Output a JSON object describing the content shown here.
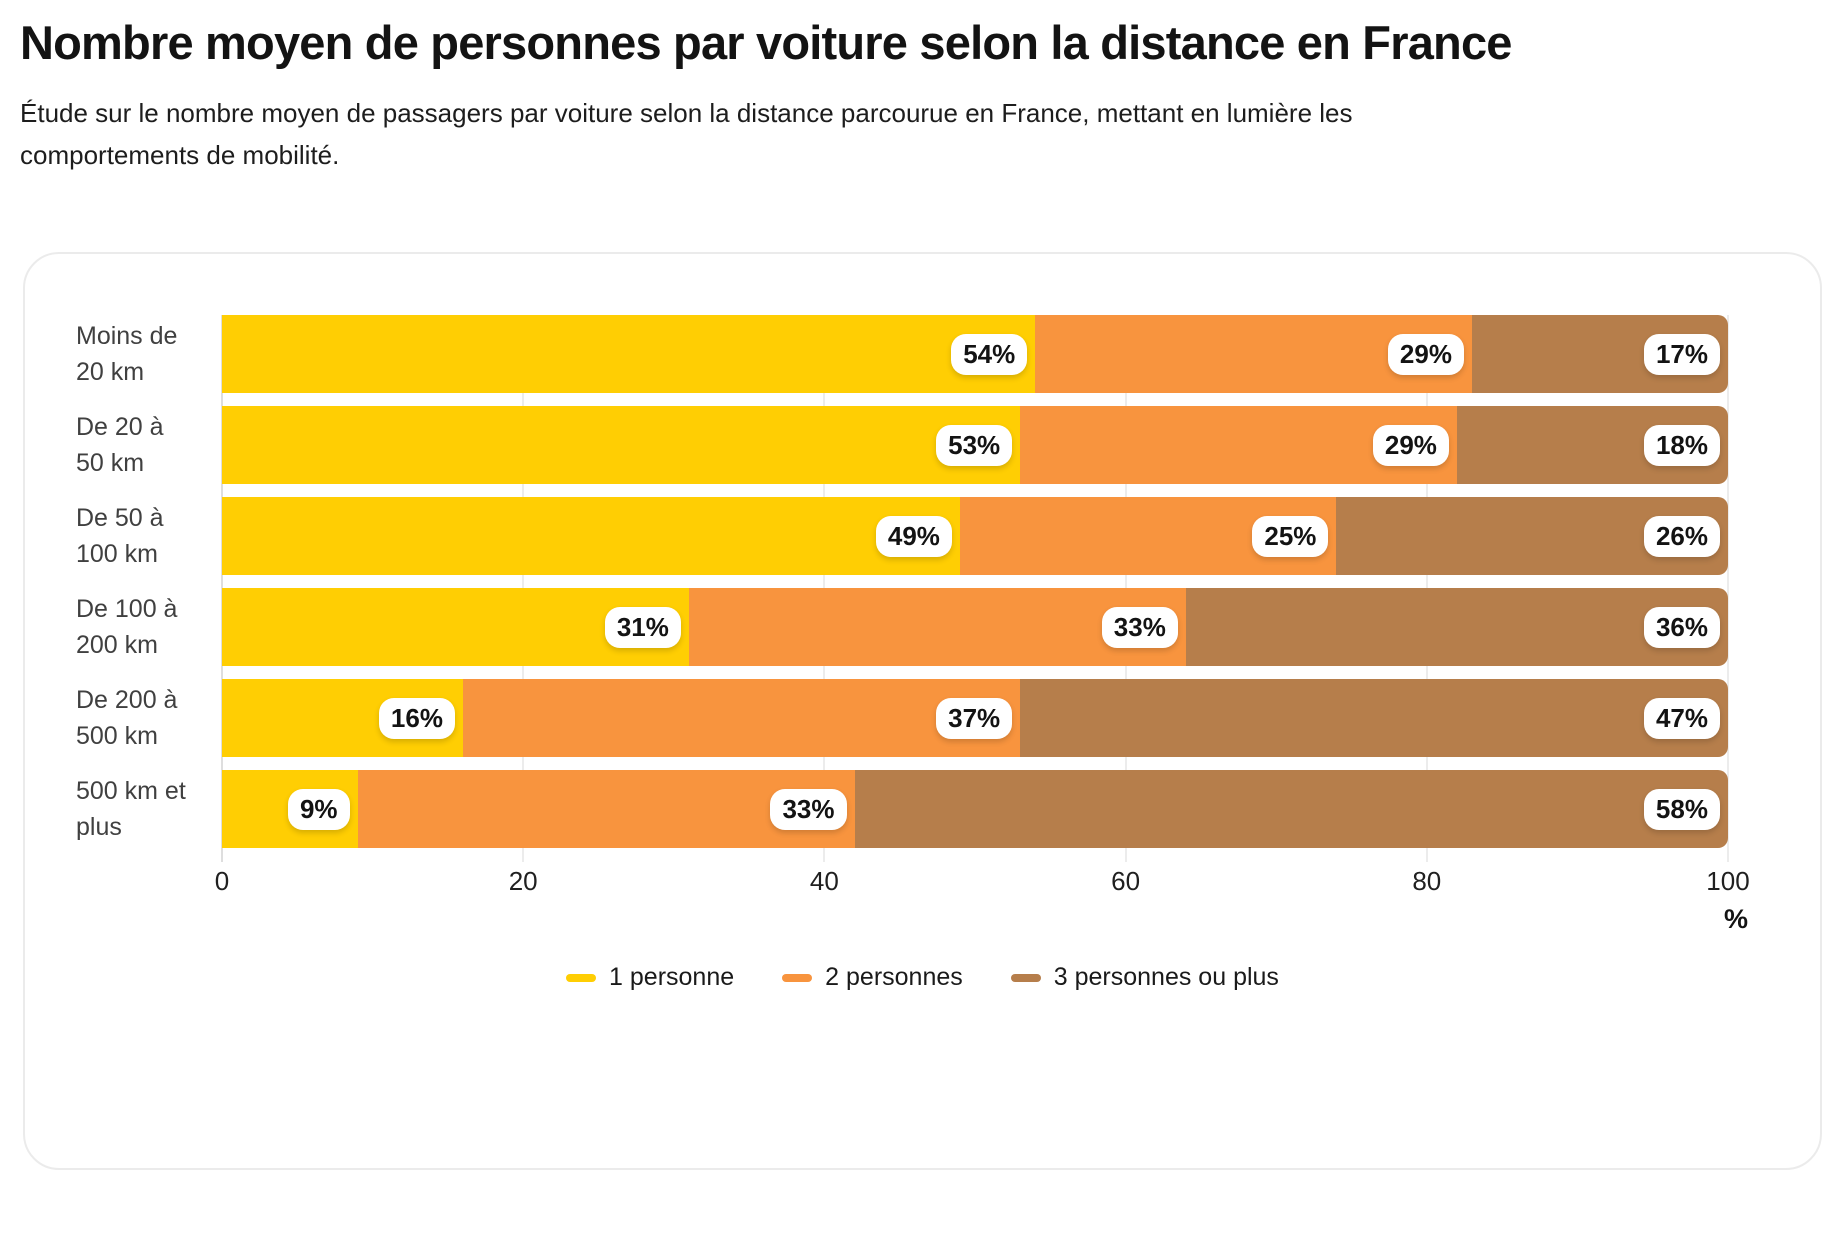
{
  "header": {
    "title": "Nombre moyen de personnes par voiture selon la distance en France",
    "subtitle": "Étude sur le nombre moyen de passagers par voiture selon la distance parcourue en France, mettant en lumière les comportements de mobilité."
  },
  "chart_data": {
    "type": "bar",
    "orientation": "horizontal",
    "stacked": true,
    "categories": [
      "Moins de\n20 km",
      "De 20 à\n50 km",
      "De 50 à\n100 km",
      "De 100 à\n200 km",
      "De 200 à\n500 km",
      "500 km et\nplus"
    ],
    "series": [
      {
        "name": "1 personne",
        "color": "#FFCE03",
        "values": [
          54,
          53,
          49,
          31,
          16,
          9
        ]
      },
      {
        "name": "2 personnes",
        "color": "#F8943E",
        "values": [
          29,
          29,
          25,
          33,
          37,
          33
        ]
      },
      {
        "name": "3 personnes ou plus",
        "color": "#B67E4B",
        "values": [
          17,
          18,
          26,
          36,
          47,
          58
        ]
      }
    ],
    "value_suffix": "%",
    "xlabel": "%",
    "x_ticks": [
      0,
      20,
      40,
      60,
      80,
      100
    ],
    "xlim": [
      0,
      100
    ],
    "grid": true,
    "legend_position": "bottom",
    "label_style": "white-pill-right-aligned"
  }
}
